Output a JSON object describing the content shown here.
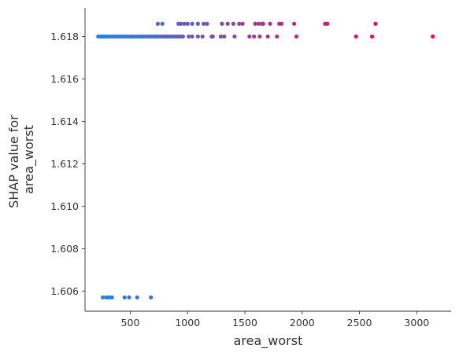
{
  "chart_data": {
    "type": "scatter",
    "xlabel": "area_worst",
    "ylabel_lines": [
      "SHAP value for",
      "area_worst"
    ],
    "xlim": [
      105,
      3300
    ],
    "ylim": [
      1.60505,
      1.61935
    ],
    "x_ticks": [
      500,
      1000,
      1500,
      2000,
      2500,
      3000
    ],
    "y_ticks": [
      1.606,
      1.608,
      1.61,
      1.612,
      1.614,
      1.616,
      1.618
    ],
    "x_tick_labels": [
      "500",
      "1000",
      "1500",
      "2000",
      "2500",
      "3000"
    ],
    "y_tick_labels": [
      "1.606",
      "1.608",
      "1.610",
      "1.612",
      "1.614",
      "1.616",
      "1.618"
    ],
    "color_scale": {
      "low": "#1e88e5",
      "high": "#ff0052",
      "min": 200,
      "max": 2700
    },
    "points": {
      "main": {
        "y": 1.618,
        "x": [
          220,
          240,
          255,
          270,
          285,
          300,
          320,
          340,
          360,
          380,
          400,
          420,
          440,
          460,
          480,
          500,
          520,
          540,
          560,
          580,
          600,
          620,
          640,
          660,
          680,
          700,
          720,
          740,
          760,
          780,
          800,
          820,
          840,
          860,
          880,
          900,
          920,
          940,
          960,
          1010,
          1040,
          1090,
          1130,
          1210,
          1220,
          1290,
          1320,
          1410,
          1540,
          1580,
          1630,
          1700,
          1780,
          1950,
          2470,
          2610,
          3140
        ]
      },
      "upper": {
        "y": 1.6186,
        "x": [
          740,
          780,
          920,
          940,
          970,
          1000,
          1040,
          1090,
          1140,
          1170,
          1300,
          1350,
          1400,
          1450,
          1480,
          1590,
          1620,
          1650,
          1660,
          1720,
          1800,
          1820,
          1930,
          2200,
          2220,
          2640
        ]
      },
      "lower": {
        "y": 1.6057,
        "x": [
          260,
          290,
          300,
          320,
          340,
          450,
          490,
          560,
          680
        ]
      }
    }
  }
}
